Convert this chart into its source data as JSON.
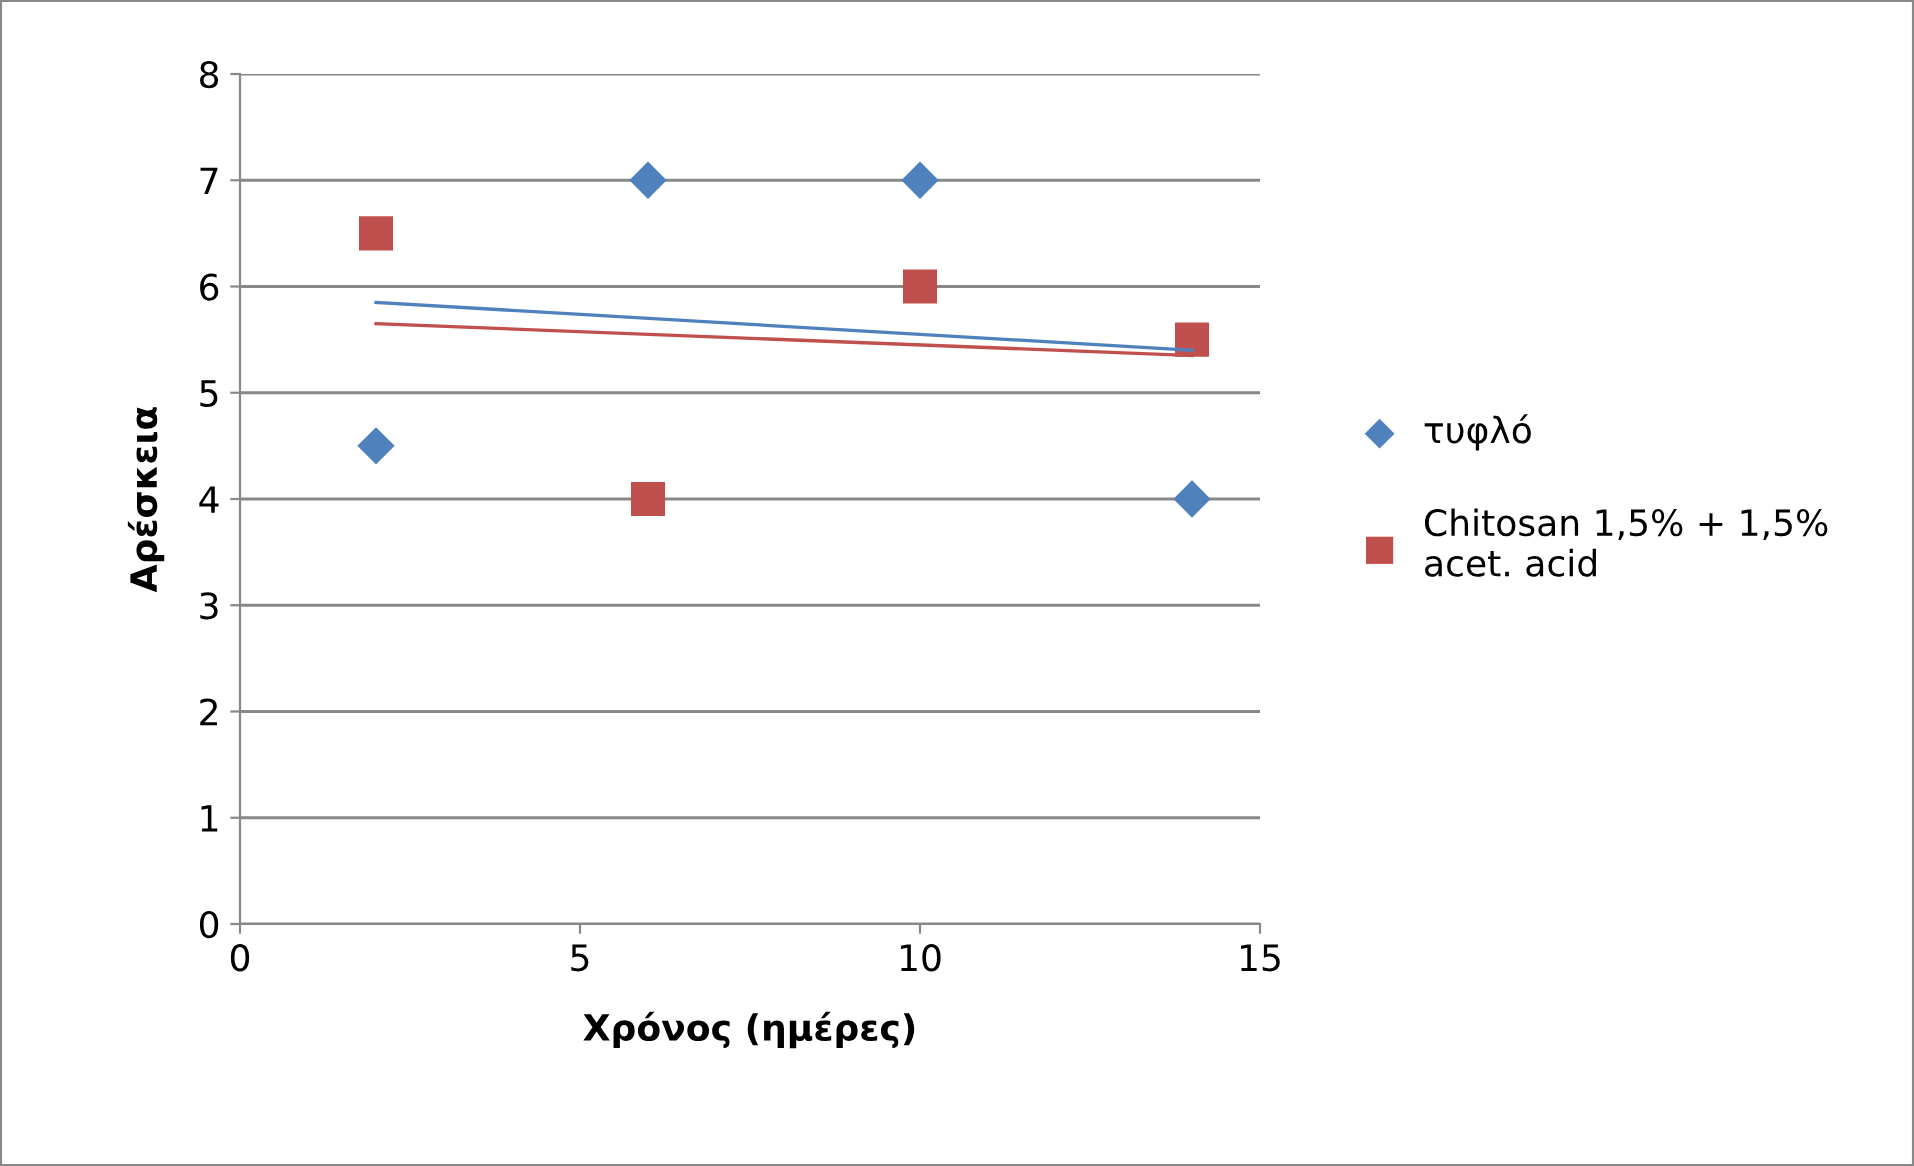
{
  "chart_data": {
    "type": "scatter",
    "xlabel": "Χρόνος (ημέρες)",
    "ylabel": "Αρέσκεια",
    "xlim": [
      0,
      15
    ],
    "xticks": [
      0,
      5,
      10,
      15
    ],
    "ylim": [
      0,
      8
    ],
    "yticks": [
      0,
      1,
      2,
      3,
      4,
      5,
      6,
      7,
      8
    ],
    "grid": "y",
    "legend": "right",
    "series": [
      {
        "name": "τυφλό",
        "color": "#4f81bd",
        "marker": "diamond",
        "x": [
          2,
          6,
          10,
          14
        ],
        "values": [
          4.5,
          7,
          7,
          4
        ]
      },
      {
        "name": "Chitosan 1,5% + 1,5%\nacet. acid",
        "color": "#c0504d",
        "marker": "square",
        "x": [
          2,
          6,
          10,
          14
        ],
        "values": [
          6.5,
          4,
          6,
          5.5
        ]
      },
      {
        "type": "line",
        "color": "#4f81bd",
        "marker": "none",
        "line_style": "solid",
        "x": [
          2,
          14
        ],
        "values": [
          5.85,
          5.4
        ]
      },
      {
        "type": "line",
        "color": "#c0504d",
        "marker": "none",
        "line_style": "solid",
        "x": [
          2,
          14
        ],
        "values": [
          5.65,
          5.35
        ]
      }
    ]
  }
}
